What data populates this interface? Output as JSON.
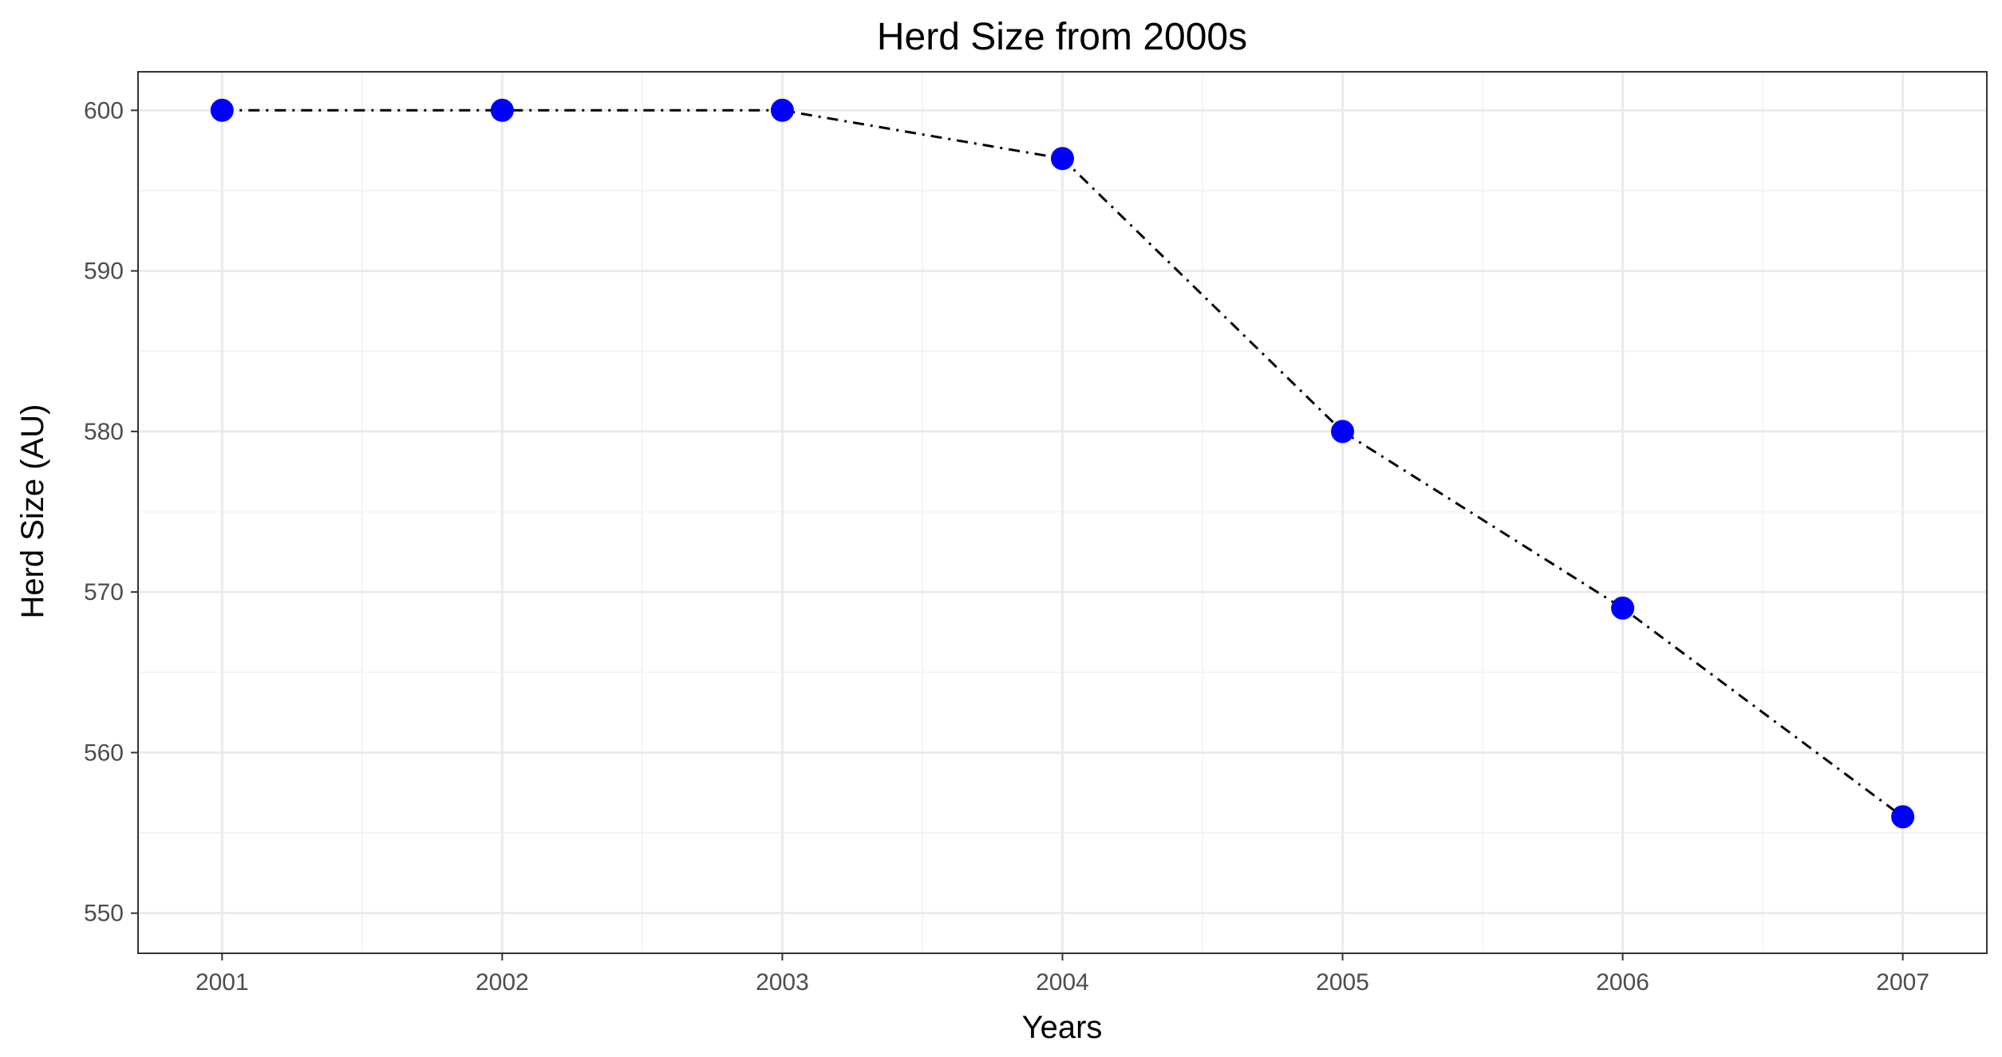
{
  "chart_data": {
    "type": "line",
    "title": "Herd Size from 2000s",
    "xlabel": "Years",
    "ylabel": "Herd Size (AU)",
    "x": [
      2001,
      2002,
      2003,
      2004,
      2005,
      2006,
      2007
    ],
    "x_tick_labels": [
      "2001",
      "2002",
      "2003",
      "2004",
      "2005",
      "2006",
      "2007"
    ],
    "y_ticks": [
      550,
      560,
      570,
      580,
      590,
      600
    ],
    "y_tick_labels": [
      "550",
      "560",
      "570",
      "580",
      "590",
      "600"
    ],
    "xlim": [
      2000.7,
      2007.3
    ],
    "ylim": [
      547.5,
      602.4
    ],
    "grid": true,
    "series": [
      {
        "values": [
          600,
          600,
          600,
          597,
          580,
          569,
          556
        ],
        "line_style": "dash-dot",
        "line_color": "#000000",
        "marker_color": "#0000ff"
      }
    ],
    "colors": {
      "panel_border": "#333333",
      "grid_major": "#ebebeb",
      "grid_minor": "#f4f4f4",
      "tick_text": "#4d4d4d"
    }
  }
}
